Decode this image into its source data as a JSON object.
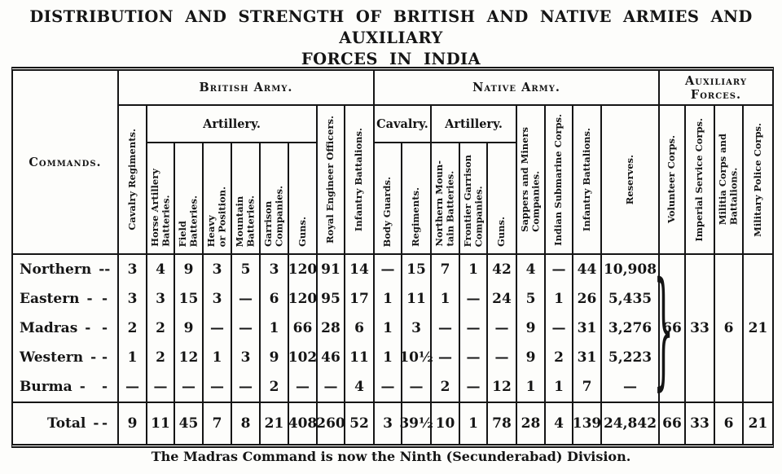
{
  "colors": {
    "ink": "#151515",
    "paper": "#fdfdfb"
  },
  "title": {
    "line1": "DISTRIBUTION AND STRENGTH OF BRITISH AND NATIVE ARMIES AND AUXILIARY",
    "line2": "FORCES IN INDIA"
  },
  "footnote": "The Madras Command is now the Ninth (Secunderabad) Division.",
  "table": {
    "commands_header": "Commands.",
    "label_dash": "-",
    "aux_brace": "}",
    "sections": {
      "british": "British Army.",
      "native": "Native Army.",
      "auxiliary": "Auxiliary Forces."
    },
    "groups": {
      "british_artillery": "Artillery.",
      "native_cavalry": "Cavalry.",
      "native_artillery": "Artillery."
    },
    "cols": {
      "cavalry_regiments": "Cavalry Regiments.",
      "horse_artillery": "Horse Artillery\nBatteries.",
      "field_batteries": "Field\nBatteries.",
      "heavy_position": "Heavy\nor Position.",
      "mountain_batteries": "Mountain\nBatteries.",
      "garrison_companies": "Garrison\nCompanies.",
      "guns_british": "Guns.",
      "re_officers": "Royal Engineer Officers.",
      "infantry_batt_british": "Infantry Battalions.",
      "body_guards": "Body Guards.",
      "regiments": "Regiments.",
      "n_mountain": "Northern Moun-\ntain Batteries.",
      "frontier_garrison": "Frontier Garrison\nCompanies.",
      "guns_native": "Guns.",
      "sappers": "Sappers and Miners\nCompanies.",
      "submarine": "Indian Submarine Corps.",
      "infantry_batt_native": "Infantry Battalions.",
      "reserves": "Reserves.",
      "volunteer": "Volunteer Corps.",
      "imperial": "Imperial Service Corps.",
      "militia": "Militia Corps and\nBattalions.",
      "police": "Military Police Corps."
    },
    "rows": [
      {
        "label": "Northern",
        "cells": [
          "3",
          "4",
          "9",
          "3",
          "5",
          "3",
          "120",
          "91",
          "14",
          "—",
          "15",
          "7",
          "1",
          "42",
          "4",
          "—",
          "44",
          "10,908"
        ]
      },
      {
        "label": "Eastern",
        "cells": [
          "3",
          "3",
          "15",
          "3",
          "—",
          "6",
          "120",
          "95",
          "17",
          "1",
          "11",
          "1",
          "—",
          "24",
          "5",
          "1",
          "26",
          "5,435"
        ]
      },
      {
        "label": "Madras",
        "cells": [
          "2",
          "2",
          "9",
          "—",
          "—",
          "1",
          "66",
          "28",
          "6",
          "1",
          "3",
          "—",
          "—",
          "—",
          "9",
          "—",
          "31",
          "3,276"
        ]
      },
      {
        "label": "Western",
        "cells": [
          "1",
          "2",
          "12",
          "1",
          "3",
          "9",
          "102",
          "46",
          "11",
          "1",
          "10½",
          "—",
          "—",
          "—",
          "9",
          "2",
          "31",
          "5,223"
        ]
      },
      {
        "label": "Burma",
        "cells": [
          "—",
          "—",
          "—",
          "—",
          "—",
          "2",
          "—",
          "—",
          "4",
          "—",
          "—",
          "2",
          "—",
          "12",
          "1",
          "1",
          "7",
          "—"
        ]
      }
    ],
    "aux_pooled": [
      "66",
      "33",
      "6",
      "21"
    ],
    "total": {
      "label": "Total",
      "cells": [
        "9",
        "11",
        "45",
        "7",
        "8",
        "21",
        "408",
        "260",
        "52",
        "3",
        "39½",
        "10",
        "1",
        "78",
        "28",
        "4",
        "139",
        "24,842",
        "66",
        "33",
        "6",
        "21"
      ]
    }
  }
}
